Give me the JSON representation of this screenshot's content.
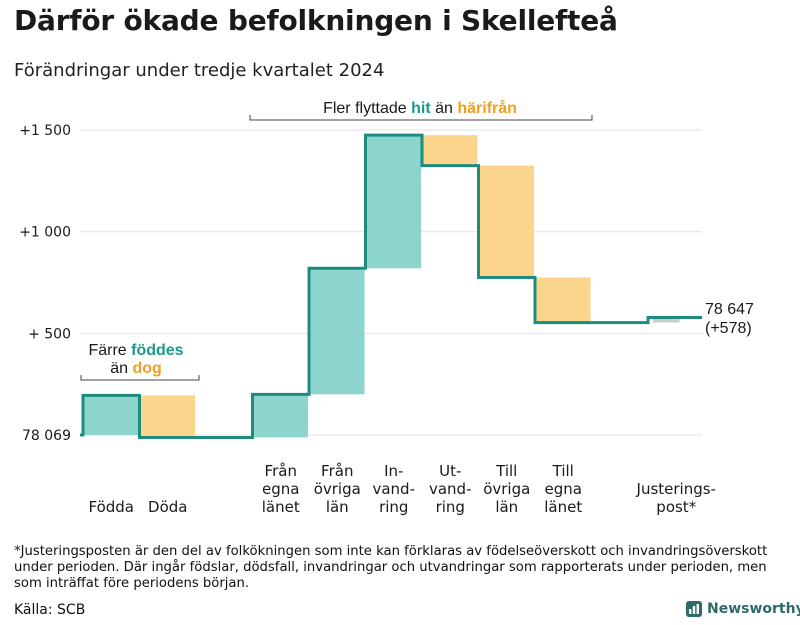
{
  "title": "Därför ökade befolkningen i Skellefteå",
  "subtitle": "Förändringar under tredje kvartalet 2024",
  "colors": {
    "increase": "#8dd4cc",
    "decrease": "#fbd58c",
    "adjustment": "#cccccc",
    "line": "#1d8c7e",
    "hit": "#1a9a8a",
    "harifran": "#f0a01e",
    "grid": "#e2e2e2",
    "bracket": "#444444"
  },
  "annotations": {
    "births_line1": "Färre ",
    "births_emph1": "föddes",
    "births_line2": "än ",
    "births_emph2": "dog",
    "migration_pre": "Fler flyttade ",
    "migration_emph1": "hit",
    "migration_mid": " än ",
    "migration_emph2": "härifrån"
  },
  "end_label": {
    "value": "78 647",
    "change": "(+578)"
  },
  "chart_data": {
    "type": "waterfall",
    "base_label": "78 069",
    "y_tick_labels": [
      "78 069",
      "+  500",
      "+1 000",
      "+1 500"
    ],
    "y_tick_values": [
      0,
      500,
      1000,
      1500
    ],
    "ylim": [
      0,
      1500
    ],
    "steps": [
      {
        "category": [
          "Födda"
        ],
        "value": 195,
        "kind": "increase"
      },
      {
        "category": [
          "Döda"
        ],
        "value": -207,
        "kind": "decrease"
      },
      {
        "category": [
          "Från",
          "egna",
          "länet"
        ],
        "value": 212,
        "kind": "increase"
      },
      {
        "category": [
          "Från",
          "övriga",
          "län"
        ],
        "value": 620,
        "kind": "increase"
      },
      {
        "category": [
          "In-",
          "vand-",
          "ring"
        ],
        "value": 655,
        "kind": "increase"
      },
      {
        "category": [
          "Ut-",
          "vand-",
          "ring"
        ],
        "value": -150,
        "kind": "decrease"
      },
      {
        "category": [
          "Till",
          "övriga",
          "län"
        ],
        "value": -550,
        "kind": "decrease"
      },
      {
        "category": [
          "Till",
          "egna",
          "länet"
        ],
        "value": -222,
        "kind": "decrease"
      },
      {
        "category": [
          "Justerings-",
          "post*"
        ],
        "value": 25,
        "kind": "adjustment"
      }
    ],
    "total_change": 578,
    "end_value": "78 647"
  },
  "footnote": "*Justeringsposten är den del av folkökningen som inte kan förklaras av födelseöverskott och invandringsöverskott under perioden. Där ingår födslar, dödsfall, invandringar och utvandringar som rapporterats under perioden, men som inträffat före periodens början.",
  "source": "Källa: SCB",
  "brand": "Newsworthy"
}
